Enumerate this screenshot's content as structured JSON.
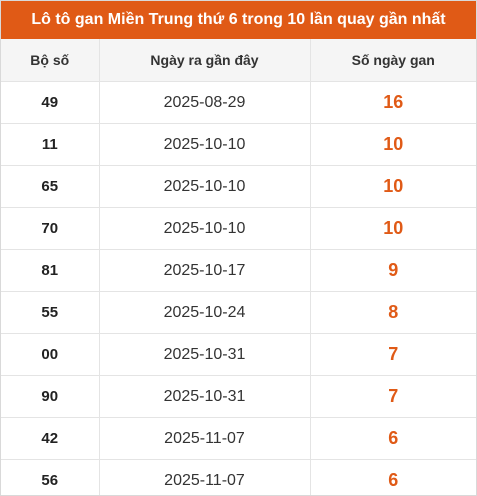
{
  "title": "Lô tô gan Miền Trung thứ 6 trong 10 lần quay gần nhất",
  "headers": {
    "number": "Bộ số",
    "last_date": "Ngày ra gần đây",
    "days": "Số ngày gan"
  },
  "rows": [
    {
      "number": "49",
      "last_date": "2025-08-29",
      "days": "16"
    },
    {
      "number": "11",
      "last_date": "2025-10-10",
      "days": "10"
    },
    {
      "number": "65",
      "last_date": "2025-10-10",
      "days": "10"
    },
    {
      "number": "70",
      "last_date": "2025-10-10",
      "days": "10"
    },
    {
      "number": "81",
      "last_date": "2025-10-17",
      "days": "9"
    },
    {
      "number": "55",
      "last_date": "2025-10-24",
      "days": "8"
    },
    {
      "number": "00",
      "last_date": "2025-10-31",
      "days": "7"
    },
    {
      "number": "90",
      "last_date": "2025-10-31",
      "days": "7"
    },
    {
      "number": "42",
      "last_date": "2025-11-07",
      "days": "6"
    },
    {
      "number": "56",
      "last_date": "2025-11-07",
      "days": "6"
    }
  ],
  "colors": {
    "accent": "#e05a16",
    "header_bg": "#f5f5f5"
  }
}
